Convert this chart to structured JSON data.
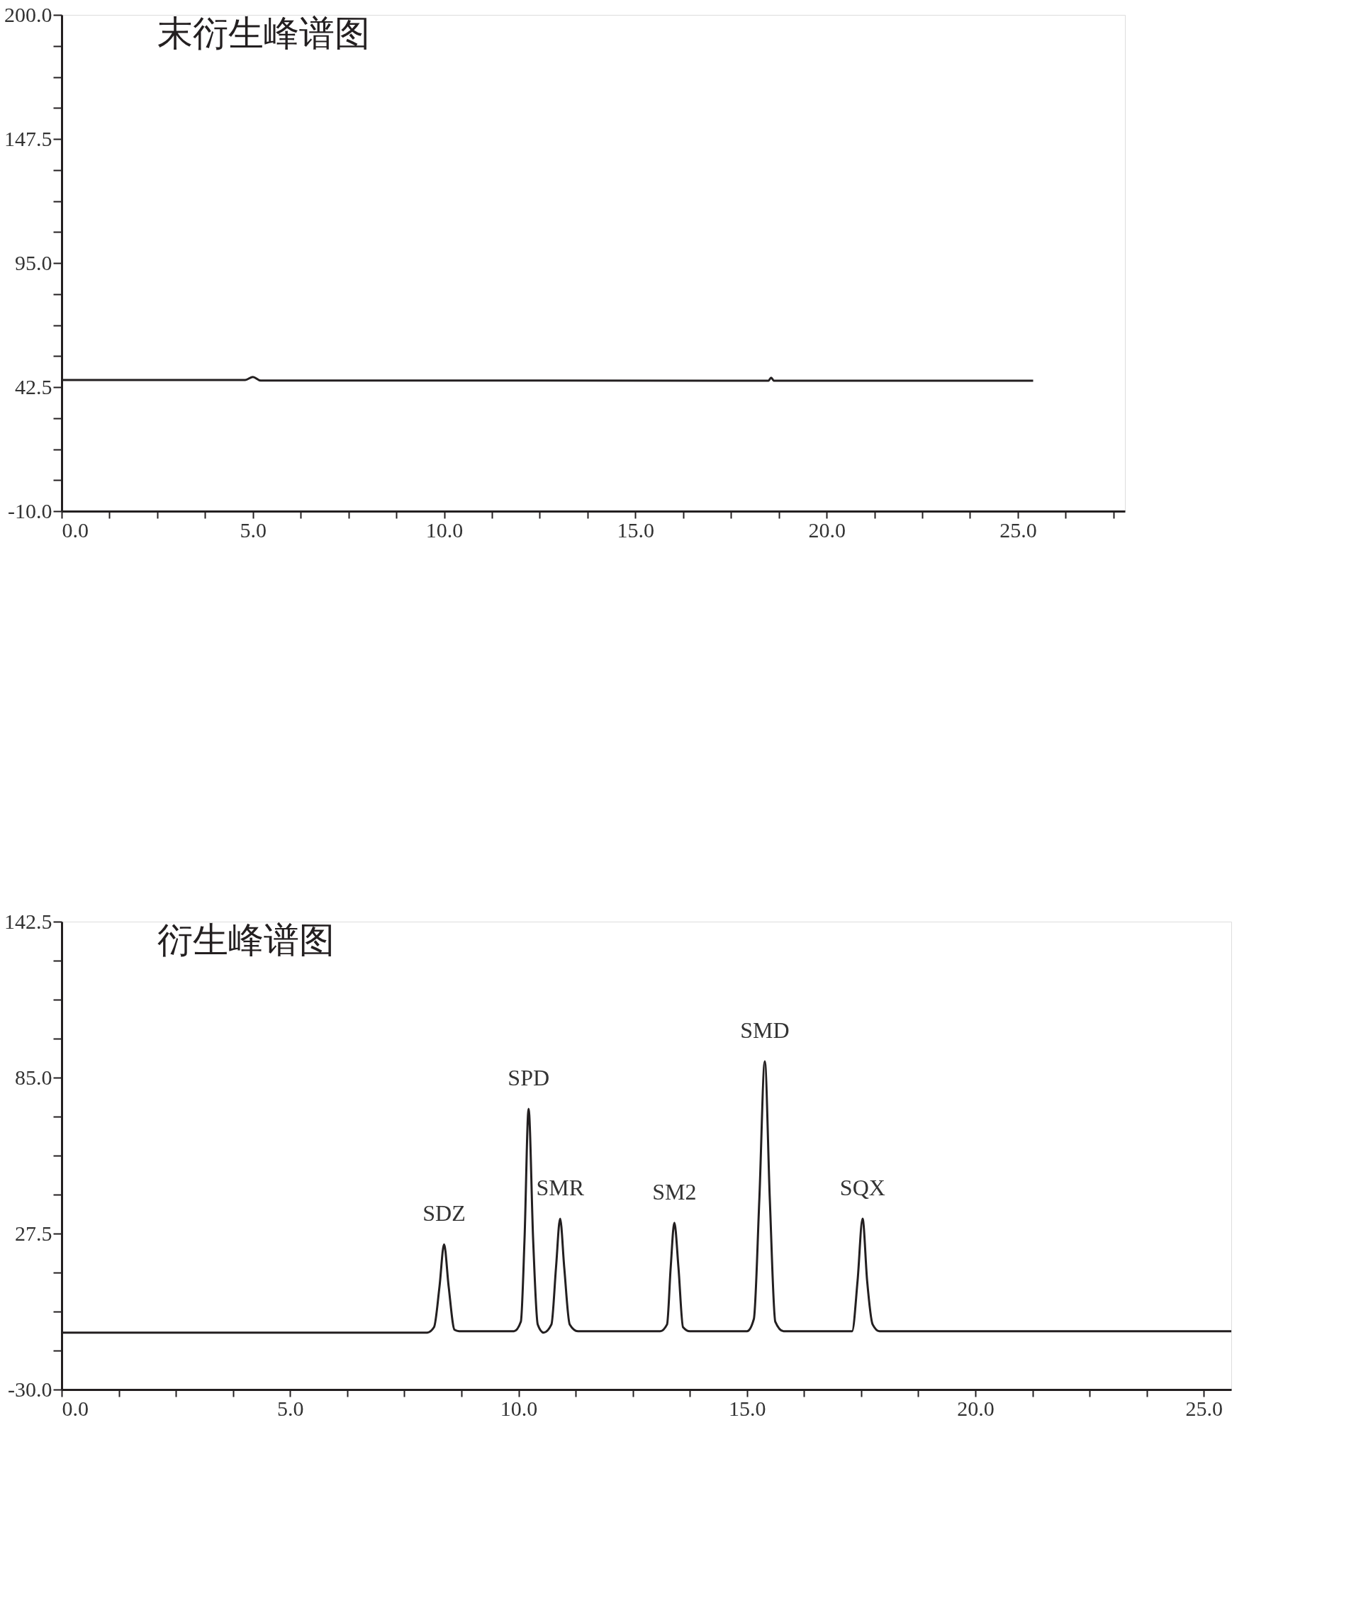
{
  "chart_data": [
    {
      "type": "line",
      "title": "末衍生峰谱图",
      "xlim": [
        0,
        27.8
      ],
      "ylim": [
        -10,
        200
      ],
      "grid": false,
      "xticks": [
        {
          "value": 0,
          "label": "0.0"
        },
        {
          "value": 1.25,
          "label": null
        },
        {
          "value": 2.5,
          "label": null
        },
        {
          "value": 3.75,
          "label": null
        },
        {
          "value": 5,
          "label": "5.0"
        },
        {
          "value": 6.25,
          "label": null
        },
        {
          "value": 7.5,
          "label": null
        },
        {
          "value": 8.75,
          "label": null
        },
        {
          "value": 10,
          "label": "10.0"
        },
        {
          "value": 11.25,
          "label": null
        },
        {
          "value": 12.5,
          "label": null
        },
        {
          "value": 13.75,
          "label": null
        },
        {
          "value": 15,
          "label": "15.0"
        },
        {
          "value": 16.25,
          "label": null
        },
        {
          "value": 17.5,
          "label": null
        },
        {
          "value": 18.75,
          "label": null
        },
        {
          "value": 20,
          "label": "20.0"
        },
        {
          "value": 21.25,
          "label": null
        },
        {
          "value": 22.5,
          "label": null
        },
        {
          "value": 23.75,
          "label": null
        },
        {
          "value": 25,
          "label": "25.0"
        },
        {
          "value": 26.25,
          "label": null
        },
        {
          "value": 27.5,
          "label": null
        }
      ],
      "yticks": [
        {
          "value": -10,
          "label": "-10.0"
        },
        {
          "value": 3.125,
          "label": null
        },
        {
          "value": 16.25,
          "label": null
        },
        {
          "value": 29.375,
          "label": null
        },
        {
          "value": 42.5,
          "label": "42.5"
        },
        {
          "value": 55.625,
          "label": null
        },
        {
          "value": 68.75,
          "label": null
        },
        {
          "value": 81.875,
          "label": null
        },
        {
          "value": 95,
          "label": "95.0"
        },
        {
          "value": 108.125,
          "label": null
        },
        {
          "value": 121.25,
          "label": null
        },
        {
          "value": 134.375,
          "label": null
        },
        {
          "value": 147.5,
          "label": "147.5"
        },
        {
          "value": 160.625,
          "label": null
        },
        {
          "value": 173.75,
          "label": null
        },
        {
          "value": 186.875,
          "label": null
        },
        {
          "value": 200,
          "label": "200.0"
        }
      ],
      "series": [
        {
          "color": "#231f20",
          "x": [
            0,
            4.8,
            5.0,
            5.2,
            18.48,
            18.55,
            18.62,
            25.4
          ],
          "values": [
            45.5,
            45.5,
            46.8,
            45.3,
            45.2,
            46.5,
            45.2,
            45.2
          ]
        }
      ]
    },
    {
      "type": "line",
      "title": "衍生峰谱图",
      "xlim": [
        0,
        25.6
      ],
      "ylim": [
        -30,
        142.5
      ],
      "grid": false,
      "xticks": [
        {
          "value": 0,
          "label": "0.0"
        },
        {
          "value": 1.25,
          "label": null
        },
        {
          "value": 2.5,
          "label": null
        },
        {
          "value": 3.75,
          "label": null
        },
        {
          "value": 5,
          "label": "5.0"
        },
        {
          "value": 6.25,
          "label": null
        },
        {
          "value": 7.5,
          "label": null
        },
        {
          "value": 8.75,
          "label": null
        },
        {
          "value": 10,
          "label": "10.0"
        },
        {
          "value": 11.25,
          "label": null
        },
        {
          "value": 12.5,
          "label": null
        },
        {
          "value": 13.75,
          "label": null
        },
        {
          "value": 15,
          "label": "15.0"
        },
        {
          "value": 16.25,
          "label": null
        },
        {
          "value": 17.5,
          "label": null
        },
        {
          "value": 18.75,
          "label": null
        },
        {
          "value": 20,
          "label": "20.0"
        },
        {
          "value": 21.25,
          "label": null
        },
        {
          "value": 22.5,
          "label": null
        },
        {
          "value": 23.75,
          "label": null
        },
        {
          "value": 25,
          "label": "25.0"
        }
      ],
      "yticks": [
        {
          "value": -30,
          "label": "-30.0"
        },
        {
          "value": -15.625,
          "label": null
        },
        {
          "value": -1.25,
          "label": null
        },
        {
          "value": 13.125,
          "label": null
        },
        {
          "value": 27.5,
          "label": "27.5"
        },
        {
          "value": 41.875,
          "label": null
        },
        {
          "value": 56.25,
          "label": null
        },
        {
          "value": 70.625,
          "label": null
        },
        {
          "value": 85,
          "label": "85.0"
        },
        {
          "value": 99.375,
          "label": null
        },
        {
          "value": 113.75,
          "label": null
        },
        {
          "value": 128.125,
          "label": null
        },
        {
          "value": 142.5,
          "label": "142.5"
        }
      ],
      "series": [
        {
          "color": "#231f20",
          "x": [
            0,
            8.0,
            8.15,
            8.27,
            8.37,
            8.47,
            8.6,
            8.7,
            9.9,
            10.05,
            10.13,
            10.22,
            10.32,
            10.42,
            10.55,
            10.72,
            10.82,
            10.91,
            11.0,
            11.12,
            11.3,
            13.1,
            13.25,
            13.33,
            13.41,
            13.5,
            13.6,
            13.75,
            15.0,
            15.15,
            15.27,
            15.39,
            15.5,
            15.62,
            15.8,
            17.3,
            17.42,
            17.53,
            17.63,
            17.75,
            17.9,
            25.6
          ],
          "values": [
            -9,
            -9,
            -7,
            8,
            23.5,
            8,
            -8,
            -8.5,
            -8.5,
            -5,
            25,
            73.5,
            25,
            -6,
            -9,
            -6,
            15,
            33,
            15,
            -6,
            -8.5,
            -8.5,
            -6,
            15,
            31.5,
            15,
            -7,
            -8.5,
            -8.5,
            -4,
            40,
            91,
            40,
            -5,
            -8.5,
            -8.5,
            10,
            33,
            10,
            -6,
            -8.5,
            -8.5
          ]
        }
      ],
      "annotations": [
        {
          "text": "SDZ",
          "x": 8.37,
          "y": 23.5
        },
        {
          "text": "SPD",
          "x": 10.22,
          "y": 73.5
        },
        {
          "text": "SMR",
          "x": 10.91,
          "y": 33
        },
        {
          "text": "SM2",
          "x": 13.41,
          "y": 31.5
        },
        {
          "text": "SMD",
          "x": 15.39,
          "y": 91
        },
        {
          "text": "SQX",
          "x": 17.53,
          "y": 33
        }
      ]
    }
  ]
}
